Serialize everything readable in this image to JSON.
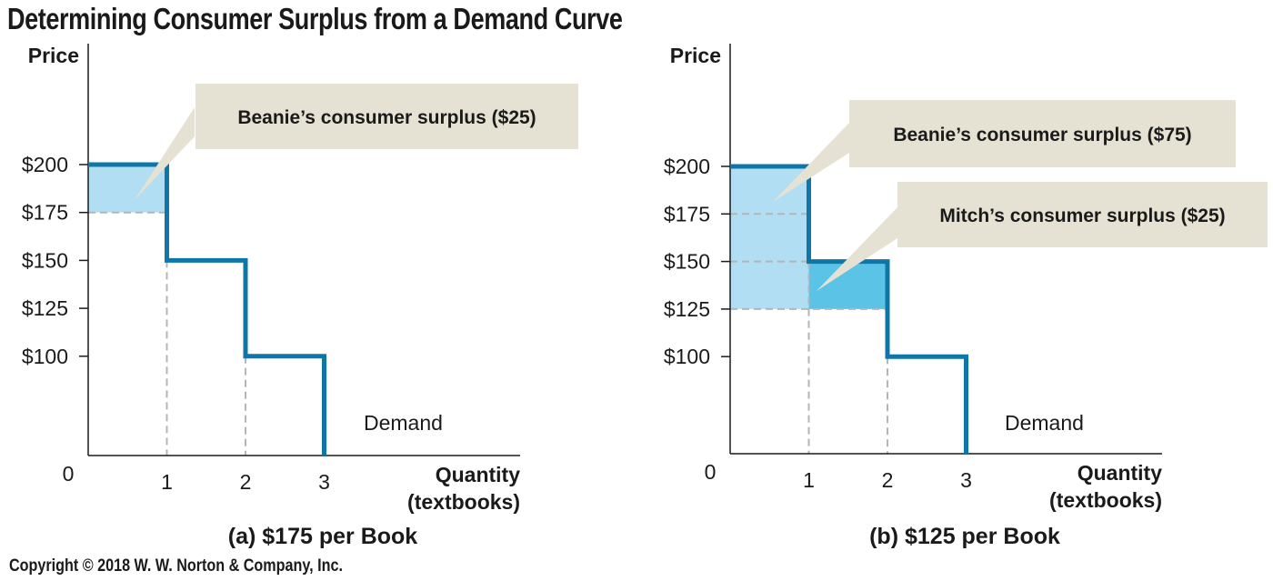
{
  "title": "Determining Consumer Surplus from a Demand Curve",
  "copyright": "Copyright © 2018 W. W. Norton & Company, Inc.",
  "colors": {
    "demand_line": "#0f76a8",
    "surplus_light": "#b1def2",
    "surplus_medium": "#5bc4e6",
    "callout_bg": "#e6e2d3",
    "dashed": "#b5b5b5"
  },
  "chart_data": [
    {
      "type": "line",
      "panel": "a",
      "caption": "(a) $175 per Book",
      "ylabel": "Price",
      "xlabel_line1": "Quantity",
      "xlabel_line2": "(textbooks)",
      "origin_label": "0",
      "x_ticks": [
        "1",
        "2",
        "3"
      ],
      "y_ticks": [
        "$100",
        "$125",
        "$150",
        "$175",
        "$200"
      ],
      "series_label": "Demand",
      "price": 175,
      "demand_steps": [
        [
          0,
          200
        ],
        [
          1,
          200
        ],
        [
          1,
          150
        ],
        [
          2,
          150
        ],
        [
          2,
          100
        ],
        [
          3,
          100
        ],
        [
          3,
          50
        ]
      ],
      "surplus_regions": [
        {
          "label": "Beanie’s consumer surplus ($25)",
          "x0": 0,
          "x1": 1,
          "y0": 175,
          "y1": 200,
          "color": "#b1def2"
        }
      ]
    },
    {
      "type": "line",
      "panel": "b",
      "caption": "(b) $125 per Book",
      "ylabel": "Price",
      "xlabel_line1": "Quantity",
      "xlabel_line2": "(textbooks)",
      "origin_label": "0",
      "x_ticks": [
        "1",
        "2",
        "3"
      ],
      "y_ticks": [
        "$100",
        "$125",
        "$150",
        "$175",
        "$200"
      ],
      "series_label": "Demand",
      "price": 125,
      "demand_steps": [
        [
          0,
          200
        ],
        [
          1,
          200
        ],
        [
          1,
          150
        ],
        [
          2,
          150
        ],
        [
          2,
          100
        ],
        [
          3,
          100
        ],
        [
          3,
          50
        ]
      ],
      "surplus_regions": [
        {
          "label": "Beanie’s consumer surplus ($75)",
          "x0": 0,
          "x1": 1,
          "y0": 125,
          "y1": 200,
          "color": "#b1def2"
        },
        {
          "label": "Mitch’s consumer surplus ($25)",
          "x0": 1,
          "x1": 2,
          "y0": 125,
          "y1": 150,
          "color": "#5bc4e6"
        }
      ]
    }
  ]
}
